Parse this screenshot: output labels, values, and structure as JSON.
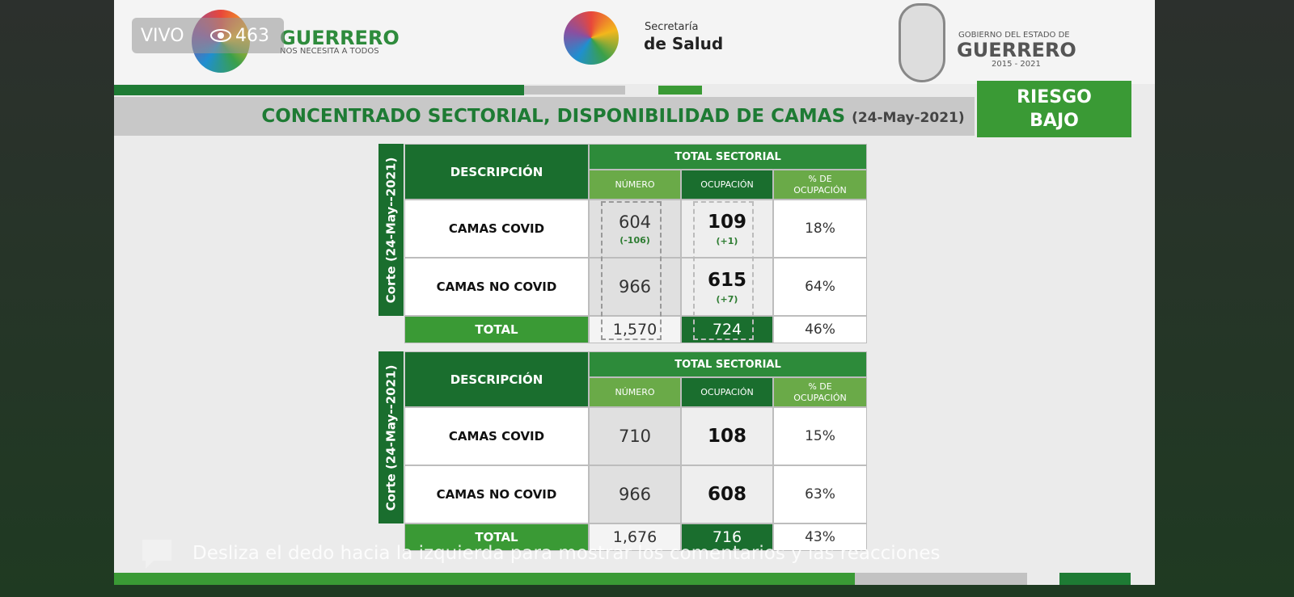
{
  "live": {
    "badge": "VIVO",
    "viewers": "463"
  },
  "header": {
    "left_logo": {
      "name": "GUERRERO",
      "tagline": "NOS NECESITA A TODOS"
    },
    "center_logo": {
      "line1": "Secretaría",
      "line2": "de Salud"
    },
    "right_logo": {
      "line1": "GOBIERNO DEL ESTADO DE",
      "line2": "GUERRERO",
      "line3": "2015 - 2021"
    }
  },
  "title": {
    "text": "CONCENTRADO SECTORIAL, DISPONIBILIDAD DE CAMAS",
    "date": "(24-May-2021)"
  },
  "risk_badge": {
    "line1": "RIESGO",
    "line2": "BAJO"
  },
  "tables": [
    {
      "side_label": "Corte (24-May--2021)",
      "header": {
        "description": "DESCRIPCIÓN",
        "group": "TOTAL SECTORIAL",
        "numero": "NÚMERO",
        "ocupacion": "OCUPACIÓN",
        "porcentaje": "% DE OCUPACIÓN"
      },
      "rows": [
        {
          "label": "CAMAS COVID",
          "numero": "604",
          "numero_change": "(-106)",
          "ocupacion": "109",
          "ocupacion_change": "(+1)",
          "porcentaje": "18%"
        },
        {
          "label": "CAMAS NO COVID",
          "numero": "966",
          "ocupacion": "615",
          "ocupacion_change": "(+7)",
          "porcentaje": "64%"
        }
      ],
      "total": {
        "label": "TOTAL",
        "numero": "1,570",
        "ocupacion": "724",
        "porcentaje": "46%"
      }
    },
    {
      "side_label": "Corte (24-May--2021)",
      "header": {
        "description": "DESCRIPCIÓN",
        "group": "TOTAL SECTORIAL",
        "numero": "NÚMERO",
        "ocupacion": "OCUPACIÓN",
        "porcentaje": "% DE OCUPACIÓN"
      },
      "rows": [
        {
          "label": "CAMAS COVID",
          "numero": "710",
          "ocupacion": "108",
          "porcentaje": "15%"
        },
        {
          "label": "CAMAS NO COVID",
          "numero": "966",
          "ocupacion": "608",
          "porcentaje": "63%"
        }
      ],
      "total": {
        "label": "TOTAL",
        "numero": "1,676",
        "ocupacion": "716",
        "porcentaje": "43%"
      }
    }
  ],
  "comment_hint": "Desliza el dedo hacia la izquierda para mostrar los comentarios y las reacciones"
}
